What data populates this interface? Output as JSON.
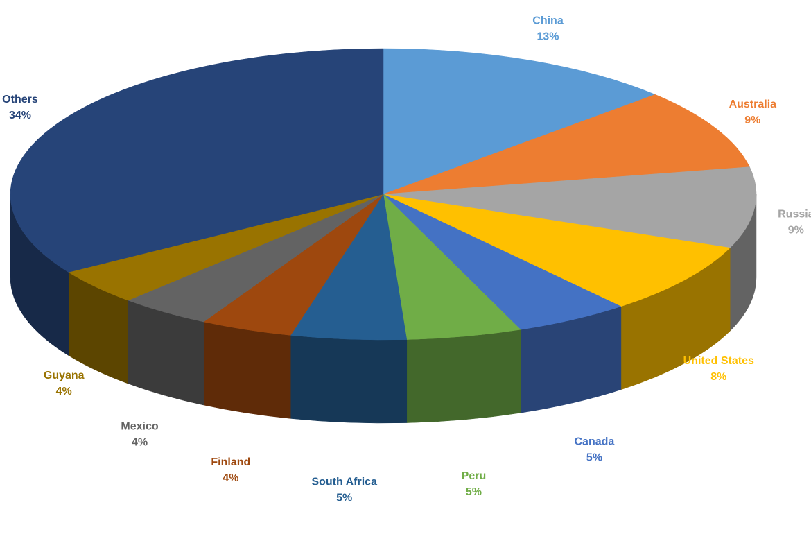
{
  "chart_data": {
    "type": "pie",
    "categories": [
      "China",
      "Australia",
      "Russia",
      "United States",
      "Canada",
      "Peru",
      "South Africa",
      "Finland",
      "Mexico",
      "Guyana",
      "Others"
    ],
    "values": [
      13,
      9,
      9,
      8,
      5,
      5,
      5,
      4,
      4,
      4,
      34
    ],
    "value_labels": [
      "13%",
      "9%",
      "9%",
      "8%",
      "5%",
      "5%",
      "5%",
      "4%",
      "4%",
      "4%",
      "34%"
    ],
    "colors": [
      "#5b9bd5",
      "#ed7d31",
      "#a5a5a5",
      "#ffc000",
      "#4472c4",
      "#70ad47",
      "#255e91",
      "#9e480e",
      "#636363",
      "#997300",
      "#264478"
    ]
  }
}
